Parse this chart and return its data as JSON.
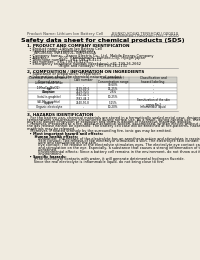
{
  "bg_color": "#f0ebe0",
  "header_left": "Product Name: Lithium Ion Battery Cell",
  "header_right_line1": "BUNKO-KOUKI TENSHOKU-000010",
  "header_right_line2": "Established / Revision: Dec.7.2010",
  "title": "Safety data sheet for chemical products (SDS)",
  "section1_title": "1. PRODUCT AND COMPANY IDENTIFICATION",
  "s1_lines": [
    "  • Product name: Lithium Ion Battery Cell",
    "  • Product code: Cylindrical-type cell",
    "      INR18650J, INR18650L, INR18650A",
    "  • Company name:    Sanyo Electric Co., Ltd.  Mobile Energy Company",
    "  • Address:          2001  Kamikamachi, Sumoto-City, Hyogo, Japan",
    "  • Telephone number:   +81-799-26-4111",
    "  • Fax number:  +81-799-26-4129",
    "  • Emergency telephone number (Weekdays) +81-799-26-2662",
    "                            (Night and holidays) +81-799-26-2131"
  ],
  "section2_title": "2. COMPOSITION / INFORMATION ON INGREDIENTS",
  "s2_intro": "  • Substance or preparation: Preparation",
  "s2_sub": "  • Information about the chemical nature of product:",
  "table_col_labels": [
    "Chemical chemical name /\nGeneral name",
    "CAS number",
    "Concentration /\nConcentration range",
    "Classification and\nhazard labeling"
  ],
  "table_rows": [
    [
      "Lithium cobalt oxide\n(LiMnxCoyNizO2)",
      "-",
      "30-60%",
      "-"
    ],
    [
      "Iron",
      "7439-89-6",
      "15-25%",
      "-"
    ],
    [
      "Aluminum",
      "7429-90-5",
      "2-6%",
      "-"
    ],
    [
      "Graphite\n(total is graphite)\n(AI-90c graphite)",
      "7782-42-5\n7782-44-2",
      "10-25%",
      "-"
    ],
    [
      "Copper",
      "7440-50-8",
      "5-15%",
      "Sensitization of the skin\ngroup No.2"
    ],
    [
      "Organic electrolyte",
      "-",
      "10-20%",
      "Inflammable liquid"
    ]
  ],
  "section3_title": "3. HAZARDS IDENTIFICATION",
  "s3_lines": [
    "   For the battery can, chemical materials are stored in a hermetically sealed metal case, designed to withstand",
    "temperatures and pressures encountered during normal use. As a result, during normal use, there is no",
    "physical danger of ignition or explosion and there is danger of hazardous materials leakage.",
    "   However, if exposed to a fire, added mechanical shocks, decomposed, written electro without any misuse,",
    "the gas release cannot be operated. The battery cell case will be breached at fire-patterns, hazardous",
    "materials may be released.",
    "   Moreover, if heated strongly by the surrounding fire, ionic gas may be emitted."
  ],
  "s3_bullet1": "  • Most important hazard and effects:",
  "s3_human": "      Human health effects:",
  "s3_human_lines": [
    "          Inhalation: The release of the electrolyte has an anesthesia action and stimulates in respiratory tract.",
    "          Skin contact: The release of the electrolyte stimulates a skin. The electrolyte skin contact causes a",
    "          sore and stimulation on the skin.",
    "          Eye contact: The release of the electrolyte stimulates eyes. The electrolyte eye contact causes a sore",
    "          and stimulation on the eye. Especially, a substance that causes a strong inflammation of the eyes is",
    "          contained.",
    "          Environmental effects: Since a battery cell remains in the environment, do not throw out it into the",
    "          environment."
  ],
  "s3_specific": "  • Specific hazards:",
  "s3_specific_lines": [
    "      If the electrolyte contacts with water, it will generate detrimental hydrogen fluoride.",
    "      Since the real electrolyte is inflammable liquid, do not bring close to fire."
  ]
}
